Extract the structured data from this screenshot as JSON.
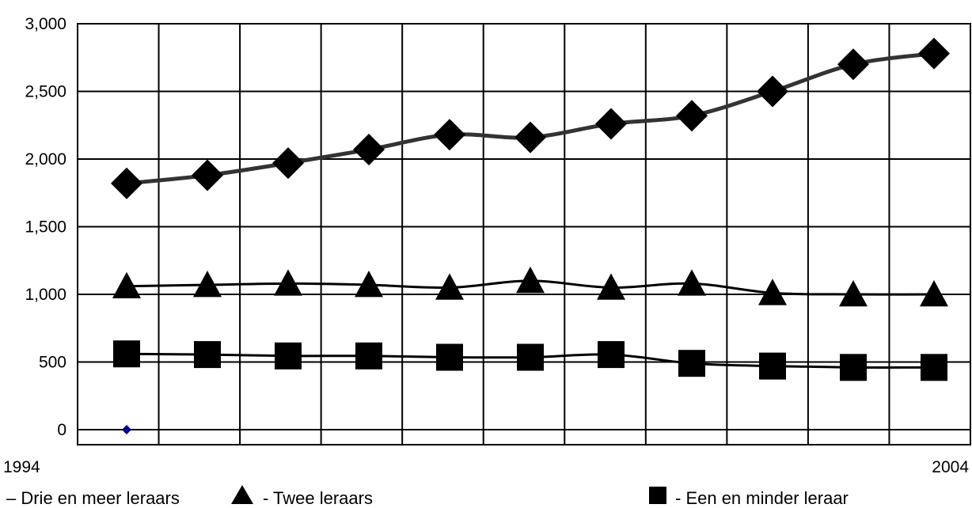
{
  "chart_data": {
    "type": "line",
    "x": [
      1994,
      1995,
      1996,
      1997,
      1998,
      1999,
      2000,
      2001,
      2002,
      2003,
      2004
    ],
    "x_tick_labels": [
      "1994",
      "2004"
    ],
    "y_tick_labels": [
      "0",
      "500",
      "1,000",
      "1,500",
      "2,000",
      "2,500",
      "3,000"
    ],
    "ylim": [
      0,
      3000
    ],
    "grid": true,
    "legend_position": "bottom",
    "series": [
      {
        "name": "Drie en meer leraars",
        "legend_label": "– Drie en meer leraars",
        "marker": "diamond",
        "color": "#333333",
        "values": [
          1820,
          1880,
          1970,
          2070,
          2180,
          2160,
          2260,
          2320,
          2500,
          2700,
          2780
        ]
      },
      {
        "name": "Twee leraars",
        "legend_label": "- Twee leraars",
        "marker": "triangle",
        "color": "#000000",
        "values": [
          1060,
          1070,
          1080,
          1070,
          1050,
          1100,
          1050,
          1080,
          1010,
          1000,
          1000
        ]
      },
      {
        "name": "Een en minder leraar",
        "legend_label": "- Een en minder leraar",
        "marker": "square",
        "color": "#000000",
        "values": [
          560,
          555,
          545,
          545,
          535,
          535,
          555,
          490,
          470,
          460,
          460
        ]
      }
    ],
    "extra_points": [
      {
        "x": 1994,
        "y": 0,
        "marker": "diamond",
        "color": "#00008b"
      }
    ]
  }
}
